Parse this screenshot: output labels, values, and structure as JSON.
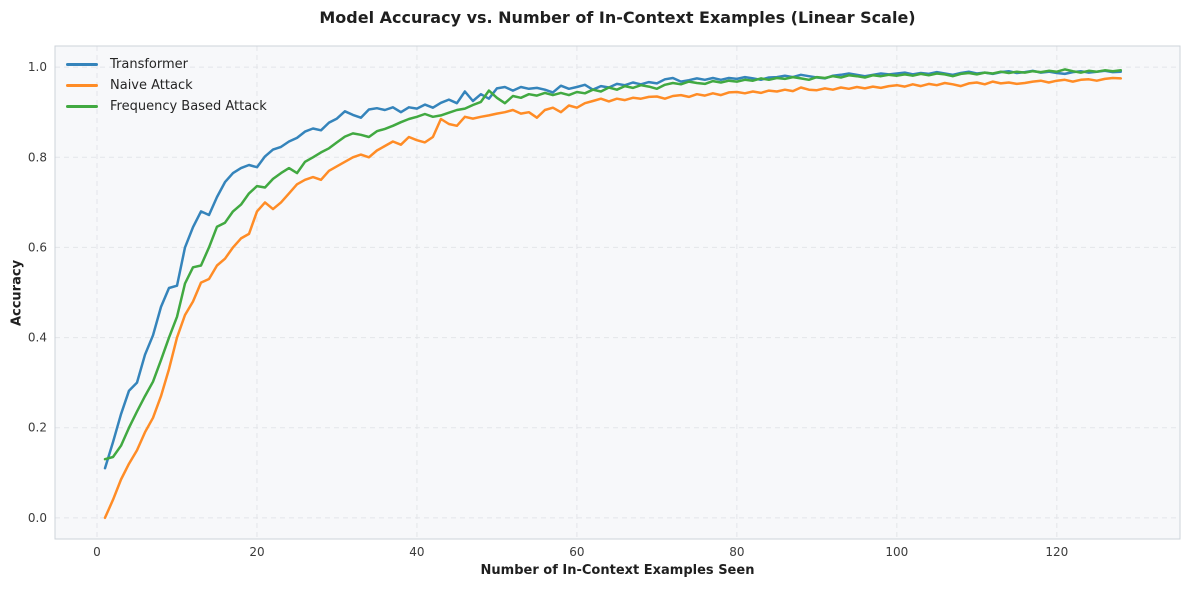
{
  "chart_data": {
    "type": "line",
    "title": "Model Accuracy vs. Number of In-Context Examples (Linear Scale)",
    "xlabel": "Number of In-Context Examples Seen",
    "ylabel": "Accuracy",
    "xlim": [
      -5.25,
      135.4
    ],
    "ylim": [
      -0.047,
      1.047
    ],
    "grid": true,
    "grid_style": "dashed",
    "legend_position": "upper left",
    "plot_bg": "#f7f8fa",
    "grid_color": "#e3e5e9",
    "spine_color": "#cdd3da",
    "tick_label_color": "#3b3b3b",
    "xticks": {
      "values": [
        0,
        20,
        40,
        60,
        80,
        100,
        120
      ],
      "labels": [
        "0",
        "20",
        "40",
        "60",
        "80",
        "100",
        "120"
      ]
    },
    "yticks": {
      "values": [
        0.0,
        0.2,
        0.4,
        0.6,
        0.8,
        1.0
      ],
      "labels": [
        "0.0",
        "0.2",
        "0.4",
        "0.6",
        "0.8",
        "1.0"
      ]
    },
    "x": [
      1,
      2,
      3,
      4,
      5,
      6,
      7,
      8,
      9,
      10,
      11,
      12,
      13,
      14,
      15,
      16,
      17,
      18,
      19,
      20,
      21,
      22,
      23,
      24,
      25,
      26,
      27,
      28,
      29,
      30,
      31,
      32,
      33,
      34,
      35,
      36,
      37,
      38,
      39,
      40,
      41,
      42,
      43,
      44,
      45,
      46,
      47,
      48,
      49,
      50,
      51,
      52,
      53,
      54,
      55,
      56,
      57,
      58,
      59,
      60,
      61,
      62,
      63,
      64,
      65,
      66,
      67,
      68,
      69,
      70,
      71,
      72,
      73,
      74,
      75,
      76,
      77,
      78,
      79,
      80,
      81,
      82,
      83,
      84,
      85,
      86,
      87,
      88,
      89,
      90,
      91,
      92,
      93,
      94,
      95,
      96,
      97,
      98,
      99,
      100,
      101,
      102,
      103,
      104,
      105,
      106,
      107,
      108,
      109,
      110,
      111,
      112,
      113,
      114,
      115,
      116,
      117,
      118,
      119,
      120,
      121,
      122,
      123,
      124,
      125,
      126,
      127,
      128
    ],
    "series": [
      {
        "name": "Transformer",
        "color": "#3584bb",
        "values": [
          0.11,
          0.168,
          0.23,
          0.282,
          0.3,
          0.362,
          0.405,
          0.468,
          0.51,
          0.515,
          0.6,
          0.645,
          0.68,
          0.672,
          0.712,
          0.745,
          0.765,
          0.776,
          0.783,
          0.778,
          0.802,
          0.817,
          0.823,
          0.835,
          0.843,
          0.857,
          0.864,
          0.86,
          0.877,
          0.886,
          0.902,
          0.894,
          0.888,
          0.906,
          0.909,
          0.905,
          0.911,
          0.9,
          0.911,
          0.908,
          0.917,
          0.91,
          0.921,
          0.928,
          0.92,
          0.946,
          0.925,
          0.94,
          0.93,
          0.953,
          0.956,
          0.948,
          0.956,
          0.952,
          0.954,
          0.95,
          0.944,
          0.959,
          0.952,
          0.956,
          0.961,
          0.95,
          0.958,
          0.955,
          0.963,
          0.96,
          0.966,
          0.962,
          0.967,
          0.964,
          0.973,
          0.976,
          0.968,
          0.971,
          0.975,
          0.972,
          0.976,
          0.972,
          0.976,
          0.974,
          0.978,
          0.975,
          0.972,
          0.977,
          0.978,
          0.981,
          0.978,
          0.983,
          0.98,
          0.977,
          0.975,
          0.981,
          0.983,
          0.986,
          0.983,
          0.98,
          0.983,
          0.986,
          0.984,
          0.986,
          0.988,
          0.984,
          0.987,
          0.985,
          0.989,
          0.986,
          0.983,
          0.987,
          0.99,
          0.986,
          0.988,
          0.985,
          0.989,
          0.991,
          0.987,
          0.989,
          0.992,
          0.988,
          0.99,
          0.987,
          0.985,
          0.989,
          0.991,
          0.988,
          0.99,
          0.992,
          0.989,
          0.99
        ]
      },
      {
        "name": "Naive Attack",
        "color": "#ff8c26",
        "values": [
          0.0,
          0.04,
          0.085,
          0.12,
          0.15,
          0.19,
          0.222,
          0.27,
          0.33,
          0.4,
          0.45,
          0.48,
          0.522,
          0.53,
          0.56,
          0.575,
          0.6,
          0.62,
          0.63,
          0.68,
          0.7,
          0.685,
          0.7,
          0.72,
          0.74,
          0.75,
          0.756,
          0.75,
          0.77,
          0.78,
          0.79,
          0.8,
          0.806,
          0.8,
          0.815,
          0.825,
          0.835,
          0.828,
          0.845,
          0.838,
          0.833,
          0.845,
          0.885,
          0.874,
          0.87,
          0.89,
          0.886,
          0.89,
          0.893,
          0.897,
          0.9,
          0.905,
          0.897,
          0.9,
          0.888,
          0.905,
          0.91,
          0.9,
          0.915,
          0.91,
          0.92,
          0.925,
          0.93,
          0.924,
          0.93,
          0.927,
          0.932,
          0.93,
          0.934,
          0.935,
          0.93,
          0.936,
          0.938,
          0.934,
          0.94,
          0.937,
          0.942,
          0.938,
          0.944,
          0.945,
          0.942,
          0.946,
          0.943,
          0.948,
          0.946,
          0.95,
          0.947,
          0.955,
          0.95,
          0.949,
          0.953,
          0.95,
          0.955,
          0.952,
          0.956,
          0.953,
          0.957,
          0.954,
          0.958,
          0.96,
          0.957,
          0.962,
          0.958,
          0.963,
          0.96,
          0.965,
          0.962,
          0.958,
          0.964,
          0.966,
          0.962,
          0.968,
          0.964,
          0.966,
          0.963,
          0.965,
          0.968,
          0.97,
          0.966,
          0.97,
          0.972,
          0.968,
          0.972,
          0.973,
          0.97,
          0.974,
          0.976,
          0.975
        ]
      },
      {
        "name": "Frequency Based Attack",
        "color": "#41a941",
        "values": [
          0.13,
          0.135,
          0.16,
          0.2,
          0.236,
          0.27,
          0.302,
          0.35,
          0.4,
          0.446,
          0.52,
          0.556,
          0.56,
          0.6,
          0.646,
          0.655,
          0.68,
          0.695,
          0.72,
          0.736,
          0.733,
          0.752,
          0.765,
          0.776,
          0.765,
          0.79,
          0.8,
          0.811,
          0.82,
          0.833,
          0.846,
          0.853,
          0.85,
          0.845,
          0.858,
          0.863,
          0.87,
          0.878,
          0.885,
          0.89,
          0.896,
          0.89,
          0.893,
          0.899,
          0.905,
          0.908,
          0.916,
          0.923,
          0.948,
          0.932,
          0.92,
          0.936,
          0.932,
          0.94,
          0.937,
          0.943,
          0.938,
          0.943,
          0.938,
          0.945,
          0.942,
          0.95,
          0.946,
          0.955,
          0.95,
          0.958,
          0.954,
          0.96,
          0.957,
          0.952,
          0.961,
          0.965,
          0.962,
          0.968,
          0.965,
          0.963,
          0.969,
          0.966,
          0.97,
          0.968,
          0.972,
          0.97,
          0.975,
          0.972,
          0.976,
          0.974,
          0.978,
          0.975,
          0.972,
          0.978,
          0.976,
          0.98,
          0.977,
          0.982,
          0.98,
          0.977,
          0.982,
          0.98,
          0.983,
          0.981,
          0.984,
          0.981,
          0.985,
          0.982,
          0.986,
          0.984,
          0.98,
          0.985,
          0.987,
          0.984,
          0.988,
          0.986,
          0.99,
          0.987,
          0.99,
          0.988,
          0.991,
          0.989,
          0.992,
          0.99,
          0.995,
          0.991,
          0.988,
          0.992,
          0.99,
          0.993,
          0.991,
          0.993
        ]
      }
    ]
  }
}
